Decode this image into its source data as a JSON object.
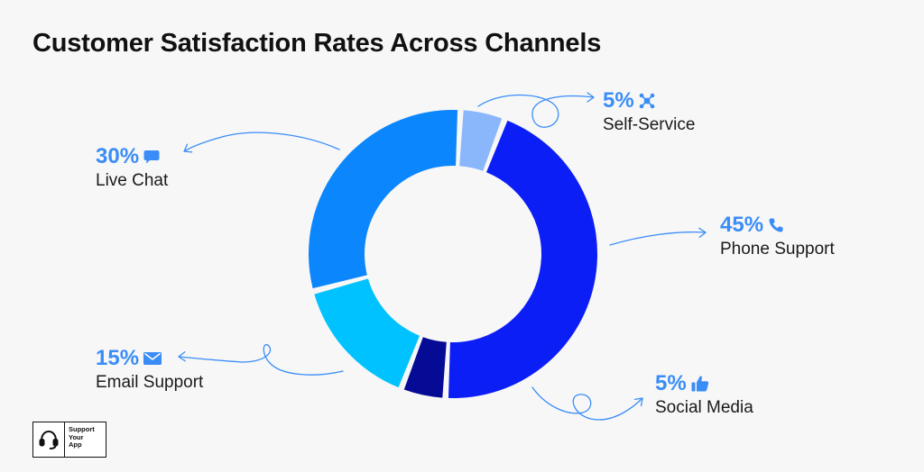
{
  "title": "Customer Satisfaction Rates Across Channels",
  "chart_data": {
    "type": "pie",
    "donut": true,
    "title": "Customer Satisfaction Rates Across Channels",
    "categories": [
      "Self-Service",
      "Phone Support",
      "Social Media",
      "Email Support",
      "Live Chat"
    ],
    "values": [
      5,
      45,
      5,
      15,
      30
    ],
    "value_labels": [
      "5%",
      "45%",
      "5%",
      "15%",
      "30%"
    ],
    "colors": [
      "#8ab6fb",
      "#0c1ef6",
      "#060b96",
      "#00c2ff",
      "#0b86fc"
    ],
    "icons": [
      "network-icon",
      "phone-icon",
      "thumbs-up-icon",
      "envelope-icon",
      "chat-bubble-icon"
    ]
  },
  "label_color": "#3a8df7",
  "arrow_color": "#3a8df7",
  "logo": {
    "line1": "Support",
    "line2": "Your",
    "line3": "App"
  }
}
